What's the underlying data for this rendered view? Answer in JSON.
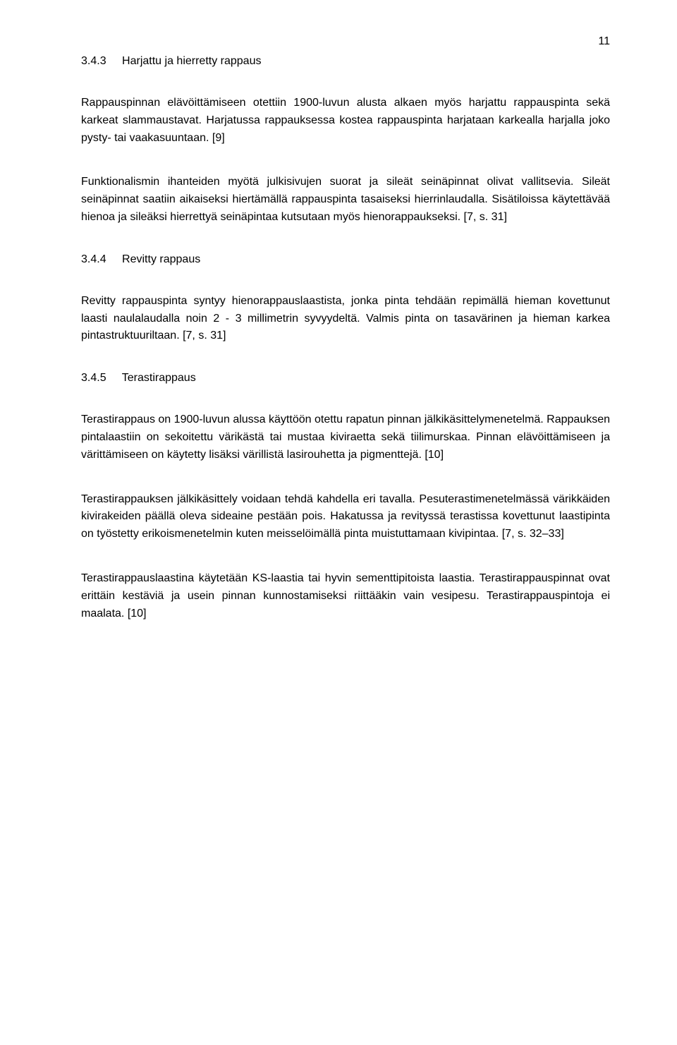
{
  "page_number": "11",
  "sections": [
    {
      "number": "3.4.3",
      "title": "Harjattu ja hierretty rappaus",
      "paragraphs": [
        "Rappauspinnan elävöittämiseen otettiin 1900-luvun alusta alkaen myös harjattu rappauspinta sekä karkeat slammaustavat. Harjatussa rappauksessa kostea rappauspinta harjataan karkealla harjalla joko pysty- tai vaakasuuntaan. [9]",
        "Funktionalismin ihanteiden myötä julkisivujen suorat ja sileät seinäpinnat olivat vallitsevia. Sileät seinäpinnat saatiin aikaiseksi hiertämällä rappauspinta tasaiseksi hierrinlaudalla. Sisätiloissa käytettävää hienoa ja sileäksi hierrettyä seinäpintaa kutsutaan myös hienorappaukseksi. [7, s. 31]"
      ]
    },
    {
      "number": "3.4.4",
      "title": "Revitty rappaus",
      "paragraphs": [
        "Revitty rappauspinta syntyy hienorappauslaastista, jonka pinta tehdään repimällä hieman kovettunut laasti naulalaudalla noin 2 - 3 millimetrin syvyydeltä. Valmis pinta on tasavärinen ja hieman karkea pintastruktuuriltaan. [7, s. 31]"
      ]
    },
    {
      "number": "3.4.5",
      "title": "Terastirappaus",
      "paragraphs": [
        "Terastirappaus on 1900-luvun alussa käyttöön otettu rapatun pinnan jälkikäsittelymenetelmä. Rappauksen pintalaastiin on sekoitettu värikästä tai mustaa kiviraetta sekä tiilimurskaa. Pinnan elävöittämiseen ja värittämiseen on käytetty lisäksi värillistä lasirouhetta ja pigmenttejä. [10]",
        "Terastirappauksen jälkikäsittely voidaan tehdä kahdella eri tavalla. Pesuterastimenetelmässä värikkäiden kivirakeiden päällä oleva sideaine pestään pois. Hakatussa ja revityssä terastissa kovettunut laastipinta on työstetty erikoismenetelmin kuten meisselöimällä pinta muistuttamaan kivipintaa. [7, s. 32–33]",
        "Terastirappauslaastina käytetään KS-laastia tai hyvin sementtipitoista laastia. Terastirappauspinnat ovat erittäin kestäviä ja usein pinnan kunnostamiseksi riittääkin vain vesipesu. Terastirappauspintoja ei maalata. [10]"
      ]
    }
  ]
}
